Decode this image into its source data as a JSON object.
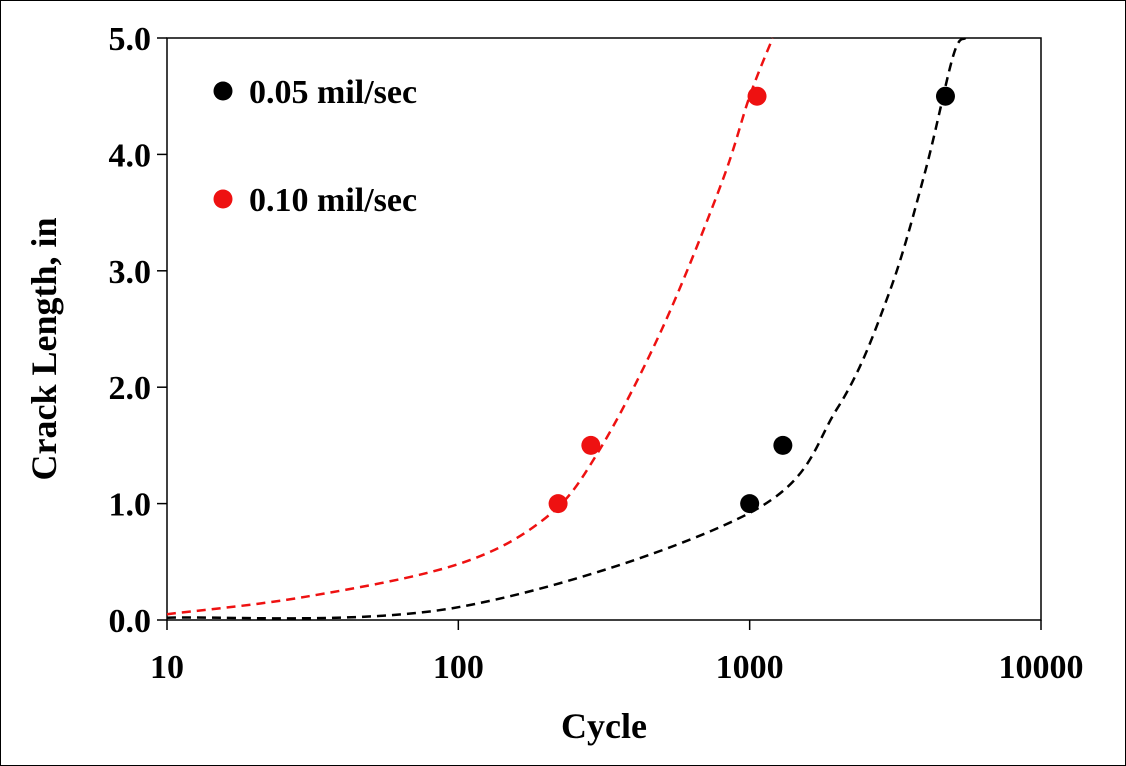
{
  "chart_data": {
    "type": "scatter",
    "title": "",
    "xlabel": "Cycle",
    "ylabel": "Crack Length, in",
    "xscale": "log",
    "xlim": [
      10,
      10000
    ],
    "ylim": [
      0.0,
      5.0
    ],
    "x_ticks": [
      10,
      100,
      1000,
      10000
    ],
    "x_tick_labels": [
      "10",
      "100",
      "1000",
      "10000"
    ],
    "y_ticks": [
      0,
      1,
      2,
      3,
      4,
      5
    ],
    "y_tick_labels": [
      "0.0",
      "1.0",
      "2.0",
      "3.0",
      "4.0",
      "5.0"
    ],
    "grid": false,
    "legend": "top-left",
    "series": [
      {
        "name": "0.05 mil/sec",
        "color": "#000000",
        "points": [
          [
            1000,
            1.0
          ],
          [
            1300,
            1.5
          ],
          [
            4700,
            4.5
          ]
        ],
        "trend": {
          "style": "dashed",
          "x": [
            10,
            100,
            1000,
            2000,
            3000,
            4000,
            5000,
            5500
          ],
          "y": [
            0.02,
            0.11,
            0.92,
            1.82,
            2.8,
            3.85,
            4.85,
            5.0
          ]
        }
      },
      {
        "name": "0.10 mil/sec",
        "color": "#ee1111",
        "points": [
          [
            220,
            1.0
          ],
          [
            285,
            1.5
          ],
          [
            1060,
            4.5
          ]
        ],
        "trend": {
          "style": "dashed",
          "x": [
            10,
            30,
            100,
            200,
            300,
            500,
            800,
            1000,
            1200
          ],
          "y": [
            0.05,
            0.2,
            0.48,
            0.88,
            1.43,
            2.5,
            3.75,
            4.5,
            5.0
          ]
        }
      }
    ]
  }
}
